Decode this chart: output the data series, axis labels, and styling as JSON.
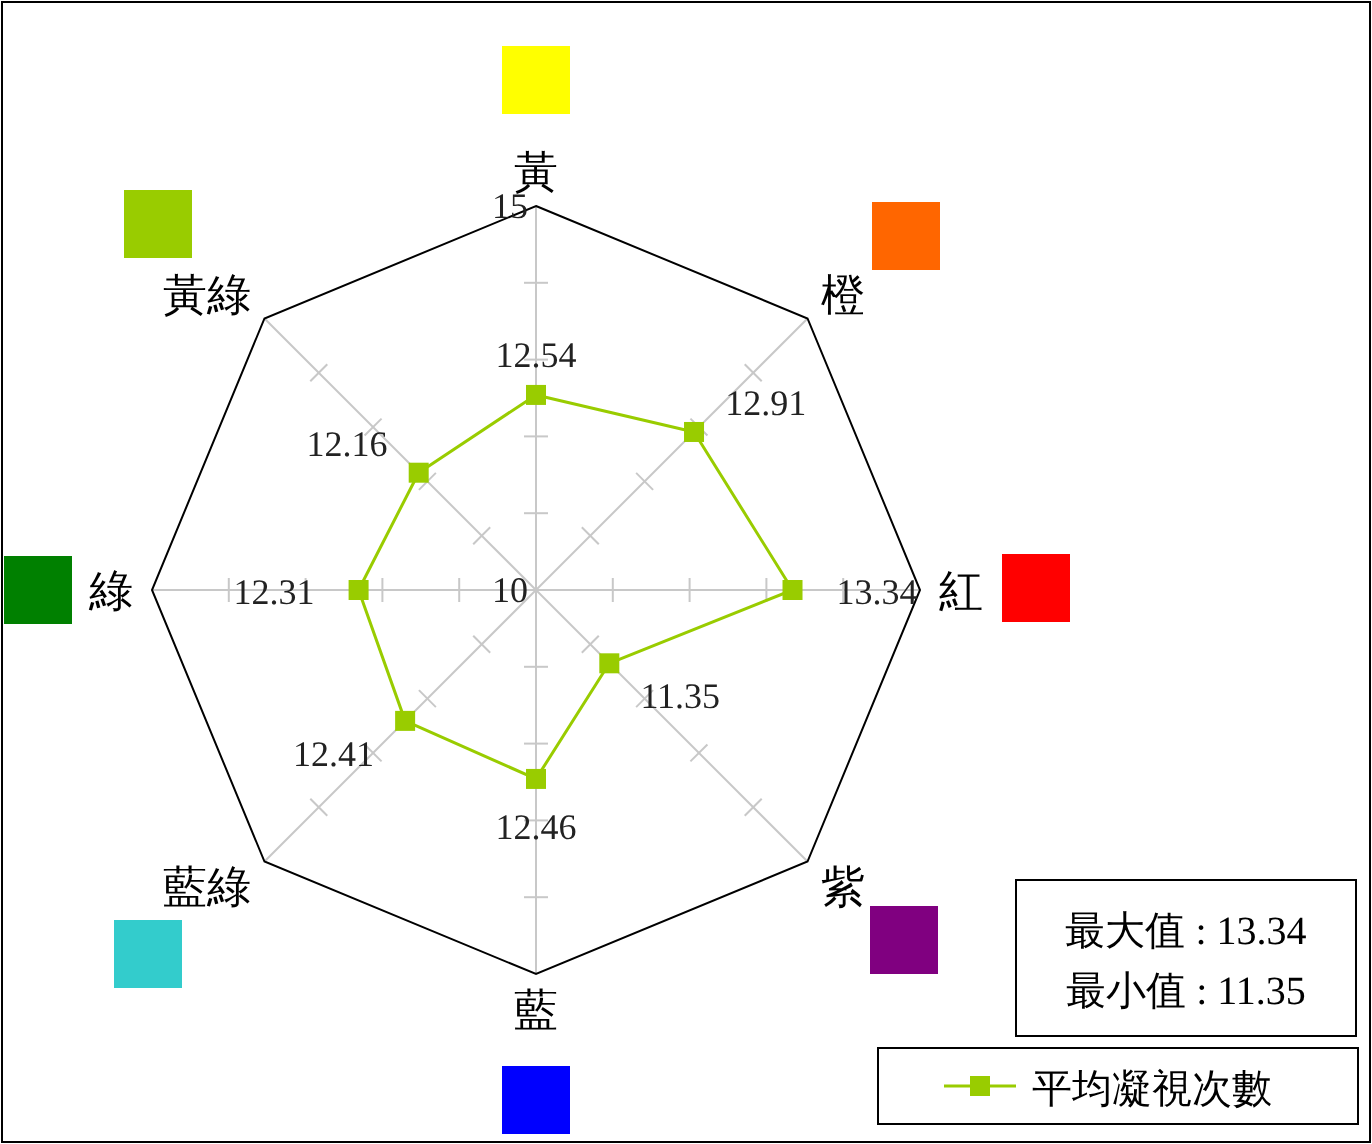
{
  "chart_data": {
    "type": "radar",
    "categories": [
      "黃",
      "橙",
      "紅",
      "紫",
      "藍",
      "藍綠",
      "綠",
      "黃綠"
    ],
    "series": [
      {
        "name": "平均凝視次數",
        "color": "#99cc00",
        "values": [
          12.54,
          12.91,
          13.34,
          11.35,
          12.46,
          12.41,
          12.31,
          12.16
        ]
      }
    ],
    "ylim": [
      10,
      15
    ],
    "yticks": [
      10,
      15
    ],
    "data_labels": true,
    "marker": "square",
    "line_style": "solid",
    "grid": true,
    "legend": "bottom right",
    "annotations": [
      "最大值 : 13.34",
      "最小值 : 11.35"
    ]
  }
}
